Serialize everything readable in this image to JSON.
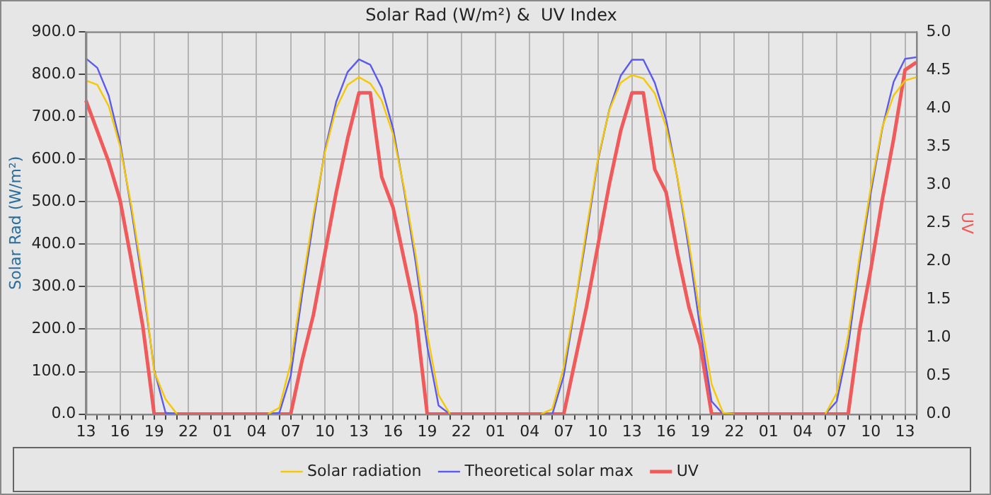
{
  "chart_data": {
    "type": "line",
    "title": "Solar Rad (W/m²) &  UV Index",
    "ylabel": "Solar Rad (W/m²)",
    "y2label": "UV",
    "categories": [
      "13",
      null,
      null,
      "16",
      null,
      null,
      "19",
      null,
      null,
      "22",
      null,
      null,
      "01",
      null,
      null,
      "04",
      null,
      null,
      "07",
      null,
      null,
      "10",
      null,
      null,
      "13",
      null,
      null,
      "16",
      null,
      null,
      "19",
      null,
      null,
      "22",
      null,
      null,
      "01",
      null,
      null,
      "04",
      null,
      null,
      "07",
      null,
      null,
      "10",
      null,
      null,
      "13",
      null,
      null,
      "16",
      null,
      null,
      "19",
      null,
      null,
      "22",
      null,
      null,
      "01",
      null,
      null,
      "04",
      null,
      null,
      "07",
      null,
      null,
      "10",
      null,
      null,
      "13",
      null
    ],
    "ylim": [
      0,
      900
    ],
    "yticks": [
      {
        "value": 0,
        "label": "0.0"
      },
      {
        "value": 100,
        "label": "100.0"
      },
      {
        "value": 200,
        "label": "200.0"
      },
      {
        "value": 300,
        "label": "300.0"
      },
      {
        "value": 400,
        "label": "400.0"
      },
      {
        "value": 500,
        "label": "500.0"
      },
      {
        "value": 600,
        "label": "600.0"
      },
      {
        "value": 700,
        "label": "700.0"
      },
      {
        "value": 800,
        "label": "800.0"
      },
      {
        "value": 900,
        "label": "900.0"
      }
    ],
    "y2lim": [
      0,
      5
    ],
    "y2ticks": [
      {
        "value": 0,
        "label": "0.0"
      },
      {
        "value": 0.5,
        "label": "0.5"
      },
      {
        "value": 1,
        "label": "1.0"
      },
      {
        "value": 1.5,
        "label": "1.5"
      },
      {
        "value": 2,
        "label": "2.0"
      },
      {
        "value": 2.5,
        "label": "2.5"
      },
      {
        "value": 3,
        "label": "3.0"
      },
      {
        "value": 3.5,
        "label": "3.5"
      },
      {
        "value": 4,
        "label": "4.0"
      },
      {
        "value": 4.5,
        "label": "4.5"
      },
      {
        "value": 5,
        "label": "5.0"
      }
    ],
    "grid": true,
    "legend": "bottom",
    "marker": "none",
    "line_style": "solid",
    "series": [
      {
        "name": "Solar radiation",
        "color": "#f5c800",
        "values": [
          785,
          775,
          725,
          630,
          490,
          320,
          100,
          35,
          0,
          null,
          null,
          null,
          null,
          null,
          null,
          null,
          0,
          15,
          120,
          300,
          470,
          615,
          720,
          775,
          793,
          778,
          738,
          658,
          528,
          372,
          190,
          45,
          0,
          null,
          null,
          null,
          null,
          null,
          null,
          null,
          0,
          12,
          110,
          260,
          435,
          600,
          715,
          780,
          798,
          790,
          755,
          676,
          556,
          404,
          230,
          70,
          3,
          0,
          null,
          null,
          null,
          null,
          null,
          null,
          null,
          0,
          50,
          185,
          370,
          535,
          675,
          750,
          785,
          793
        ]
      },
      {
        "name": "Theoretical solar max",
        "color": "#5a5af0",
        "values": [
          837,
          815,
          750,
          640,
          480,
          305,
          105,
          3,
          0,
          null,
          null,
          null,
          null,
          null,
          null,
          null,
          0,
          3,
          90,
          280,
          455,
          620,
          735,
          805,
          835,
          822,
          768,
          672,
          522,
          354,
          160,
          20,
          0,
          null,
          null,
          null,
          null,
          null,
          null,
          null,
          0,
          0,
          90,
          255,
          422,
          596,
          716,
          796,
          834,
          834,
          780,
          693,
          554,
          388,
          200,
          30,
          0,
          0,
          null,
          null,
          null,
          null,
          null,
          null,
          null,
          0,
          30,
          160,
          354,
          522,
          672,
          782,
          836,
          840
        ]
      },
      {
        "name": "UV",
        "color": "#f05a5a",
        "axis": "y2",
        "values": [
          4.1,
          3.7,
          3.3,
          2.8,
          2.0,
          1.15,
          0,
          0,
          0,
          0,
          0,
          0,
          0,
          0,
          0,
          0,
          0,
          0,
          0,
          0.7,
          1.3,
          2.1,
          2.9,
          3.6,
          4.2,
          4.2,
          3.1,
          2.7,
          2.0,
          1.3,
          0,
          0,
          0,
          0,
          0,
          0,
          0,
          0,
          0,
          0,
          0,
          0,
          0,
          0.7,
          1.4,
          2.2,
          3.0,
          3.7,
          4.2,
          4.2,
          3.2,
          2.9,
          2.1,
          1.4,
          0.9,
          0,
          0,
          0,
          0,
          0,
          0,
          0,
          0,
          0,
          0,
          0,
          0,
          0,
          1.1,
          1.9,
          2.8,
          3.6,
          4.5,
          4.6
        ]
      }
    ]
  }
}
